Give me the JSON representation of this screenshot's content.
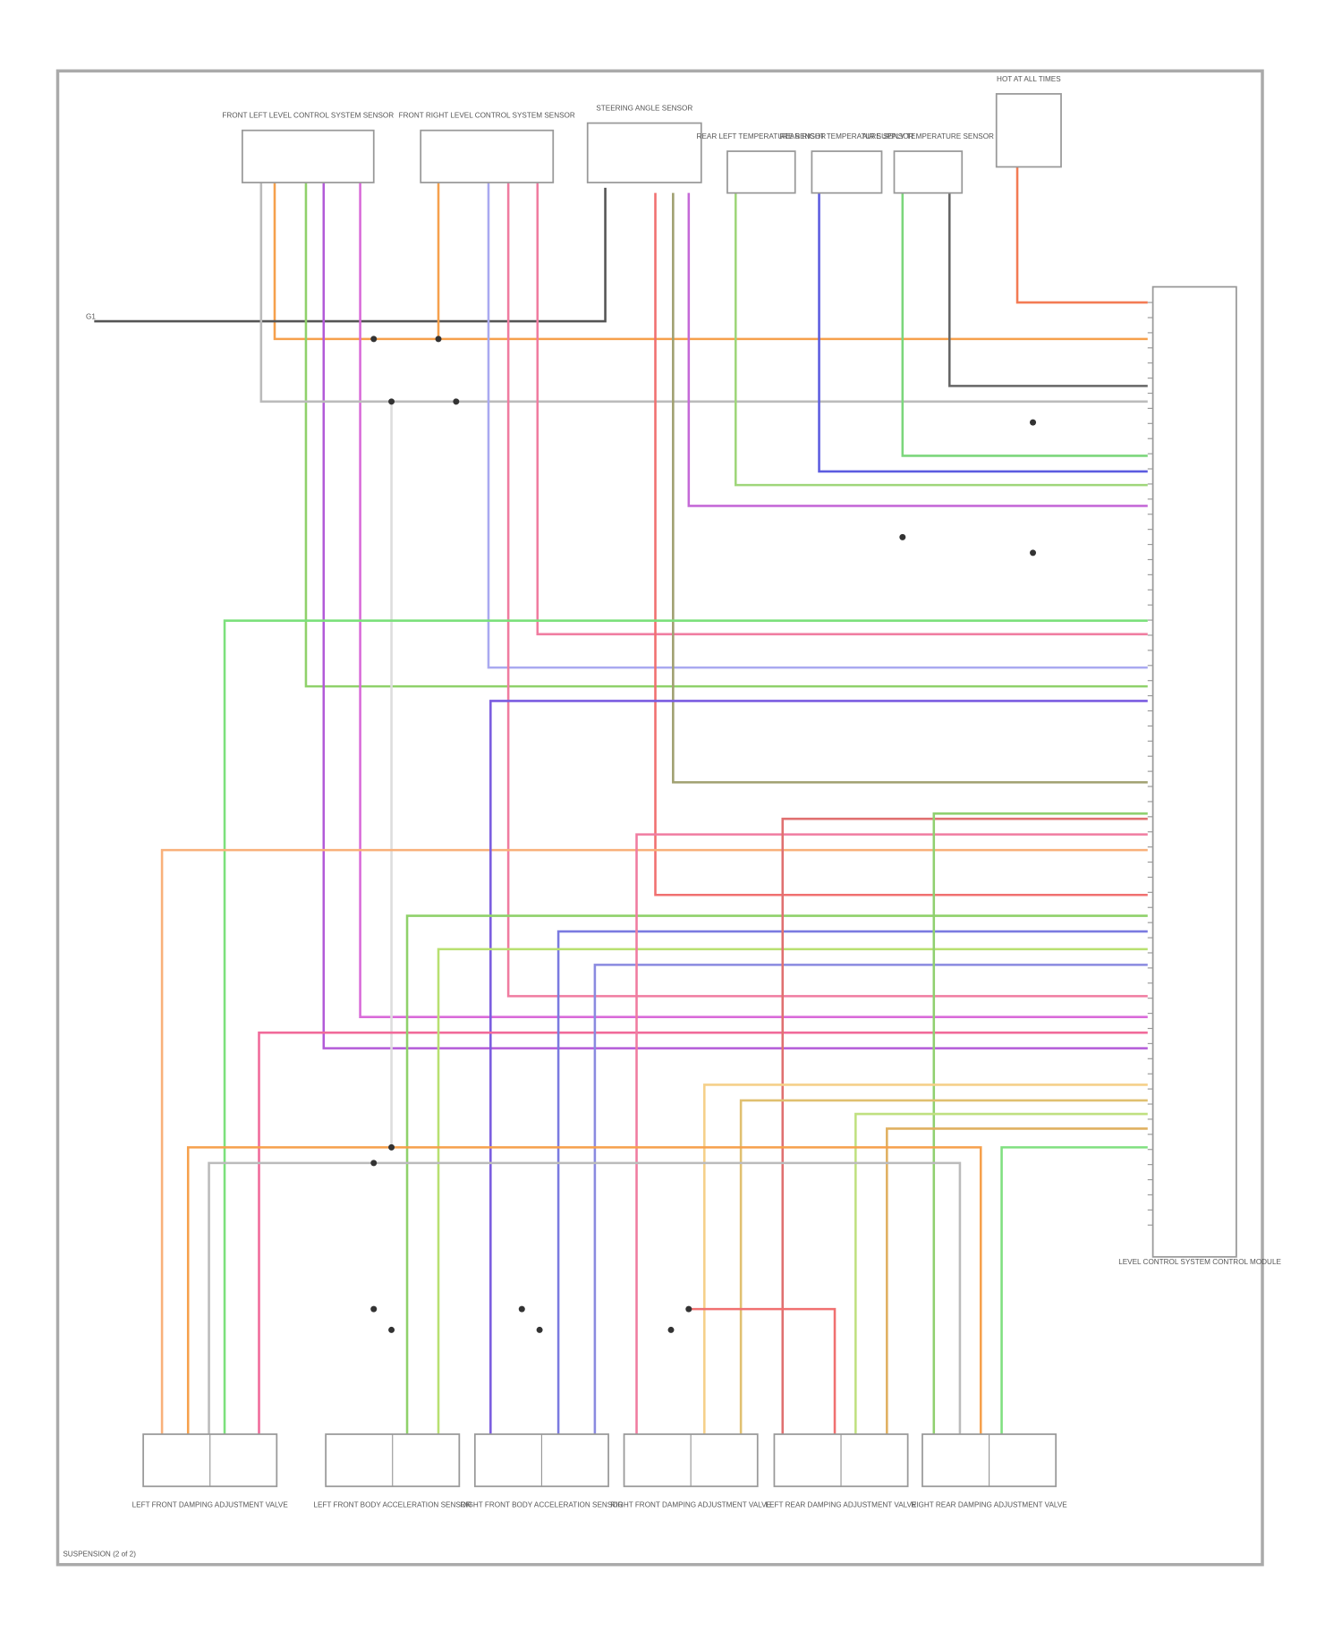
{
  "header": {
    "footer": "SUSPENSION (2 of 2)"
  },
  "top_components": [
    {
      "label": "FRONT LEFT LEVEL CONTROL SYSTEM SENSOR"
    },
    {
      "label": "FRONT RIGHT LEVEL CONTROL SYSTEM SENSOR"
    },
    {
      "label": "STEERING ANGLE SENSOR"
    },
    {
      "label": "REAR LEFT TEMPERATURE SENSOR"
    },
    {
      "label": "REAR RIGHT TEMPERATURE SENSOR"
    },
    {
      "label": "AIR SUPPLY TEMPERATURE SENSOR"
    },
    {
      "label": "HOT AT ALL TIMES"
    }
  ],
  "bottom_components": [
    {
      "label": "LEFT FRONT DAMPING ADJUSTMENT VALVE"
    },
    {
      "label": "LEFT FRONT BODY ACCELERATION SENSOR"
    },
    {
      "label": "RIGHT FRONT BODY ACCELERATION SENSOR"
    },
    {
      "label": "RIGHT FRONT DAMPING ADJUSTMENT VALVE"
    },
    {
      "label": "LEFT REAR DAMPING ADJUSTMENT VALVE"
    },
    {
      "label": "RIGHT REAR DAMPING ADJUSTMENT VALVE"
    }
  ],
  "module": {
    "label": "LEVEL CONTROL SYSTEM CONTROL MODULE"
  },
  "ground": {
    "label": "G1"
  }
}
